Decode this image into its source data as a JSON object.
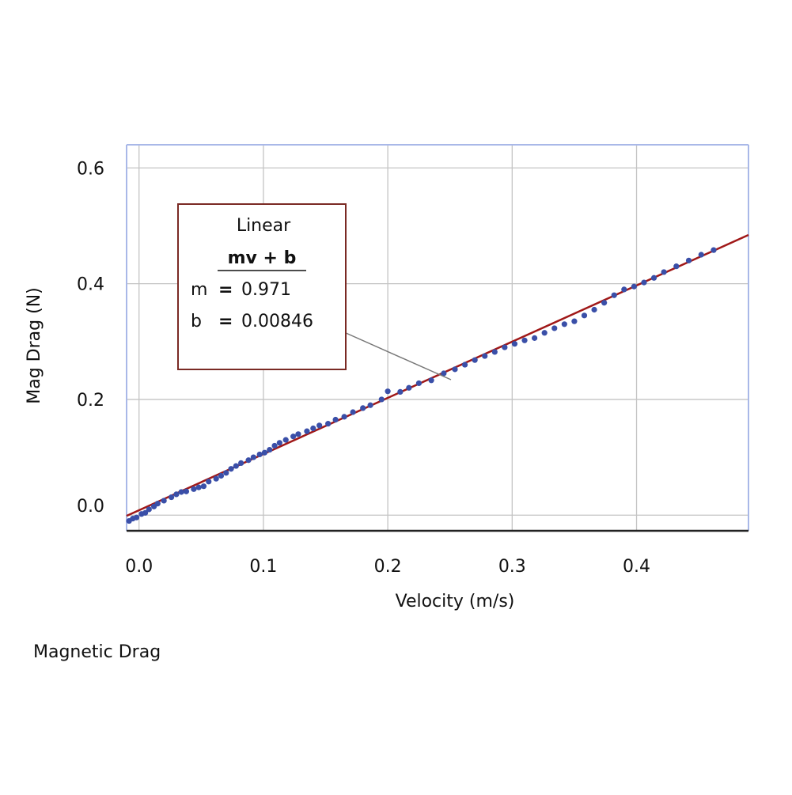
{
  "chart_data": {
    "type": "scatter",
    "title": "",
    "caption": "Magnetic Drag",
    "xlabel": "Velocity (m/s)",
    "ylabel": "Mag Drag (N)",
    "xlim": [
      -0.01,
      0.49
    ],
    "ylim": [
      -0.027,
      0.64
    ],
    "xticks": [
      0.0,
      0.1,
      0.2,
      0.3,
      0.4
    ],
    "yticks": [
      0.0,
      0.2,
      0.4,
      0.6
    ],
    "xtick_labels": [
      "0.0",
      "0.1",
      "0.2",
      "0.3",
      "0.4"
    ],
    "ytick_labels": [
      "0.0",
      "0.2",
      "0.4",
      "0.6"
    ],
    "grid": true,
    "colors": {
      "points": "#3a4fa8",
      "fit_line": "#a01818",
      "frame": "#a9b8e8",
      "grid": "#c4c4c4",
      "box_border": "#7a2a24"
    },
    "series": [
      {
        "x": [
          -0.008,
          -0.005,
          -0.002,
          0.002,
          0.005,
          0.008,
          0.012,
          0.015,
          0.02,
          0.026,
          0.03,
          0.034,
          0.038,
          0.044,
          0.048,
          0.052,
          0.056,
          0.062,
          0.066,
          0.07,
          0.074,
          0.078,
          0.082,
          0.088,
          0.092,
          0.097,
          0.101,
          0.105,
          0.109,
          0.113,
          0.118,
          0.124,
          0.128,
          0.135,
          0.14,
          0.145,
          0.152,
          0.158,
          0.165,
          0.172,
          0.18,
          0.186,
          0.195,
          0.2,
          0.21,
          0.217,
          0.225,
          0.235,
          0.245,
          0.254,
          0.262,
          0.27,
          0.278,
          0.286,
          0.294,
          0.302,
          0.31,
          0.318,
          0.326,
          0.334,
          0.342,
          0.35,
          0.358,
          0.366,
          0.374,
          0.382,
          0.39,
          0.398,
          0.406,
          0.414,
          0.422,
          0.432,
          0.442,
          0.452,
          0.462
        ],
        "y": [
          -0.01,
          -0.006,
          -0.004,
          0.002,
          0.004,
          0.01,
          0.015,
          0.02,
          0.025,
          0.031,
          0.036,
          0.04,
          0.041,
          0.045,
          0.048,
          0.05,
          0.058,
          0.063,
          0.068,
          0.073,
          0.08,
          0.085,
          0.09,
          0.095,
          0.1,
          0.105,
          0.108,
          0.113,
          0.12,
          0.125,
          0.13,
          0.136,
          0.14,
          0.145,
          0.15,
          0.155,
          0.158,
          0.165,
          0.17,
          0.178,
          0.185,
          0.19,
          0.2,
          0.214,
          0.213,
          0.22,
          0.228,
          0.233,
          0.245,
          0.252,
          0.26,
          0.268,
          0.275,
          0.282,
          0.29,
          0.296,
          0.302,
          0.306,
          0.315,
          0.323,
          0.33,
          0.335,
          0.345,
          0.355,
          0.367,
          0.38,
          0.39,
          0.395,
          0.402,
          0.41,
          0.42,
          0.43,
          0.44,
          0.45,
          0.458
        ]
      }
    ],
    "fit": {
      "name": "Linear",
      "equation": "mv + b",
      "m_label": "m",
      "m_value": "0.971",
      "b_label": "b",
      "b_value": "0.00846",
      "m": 0.971,
      "b": 0.00846
    }
  }
}
